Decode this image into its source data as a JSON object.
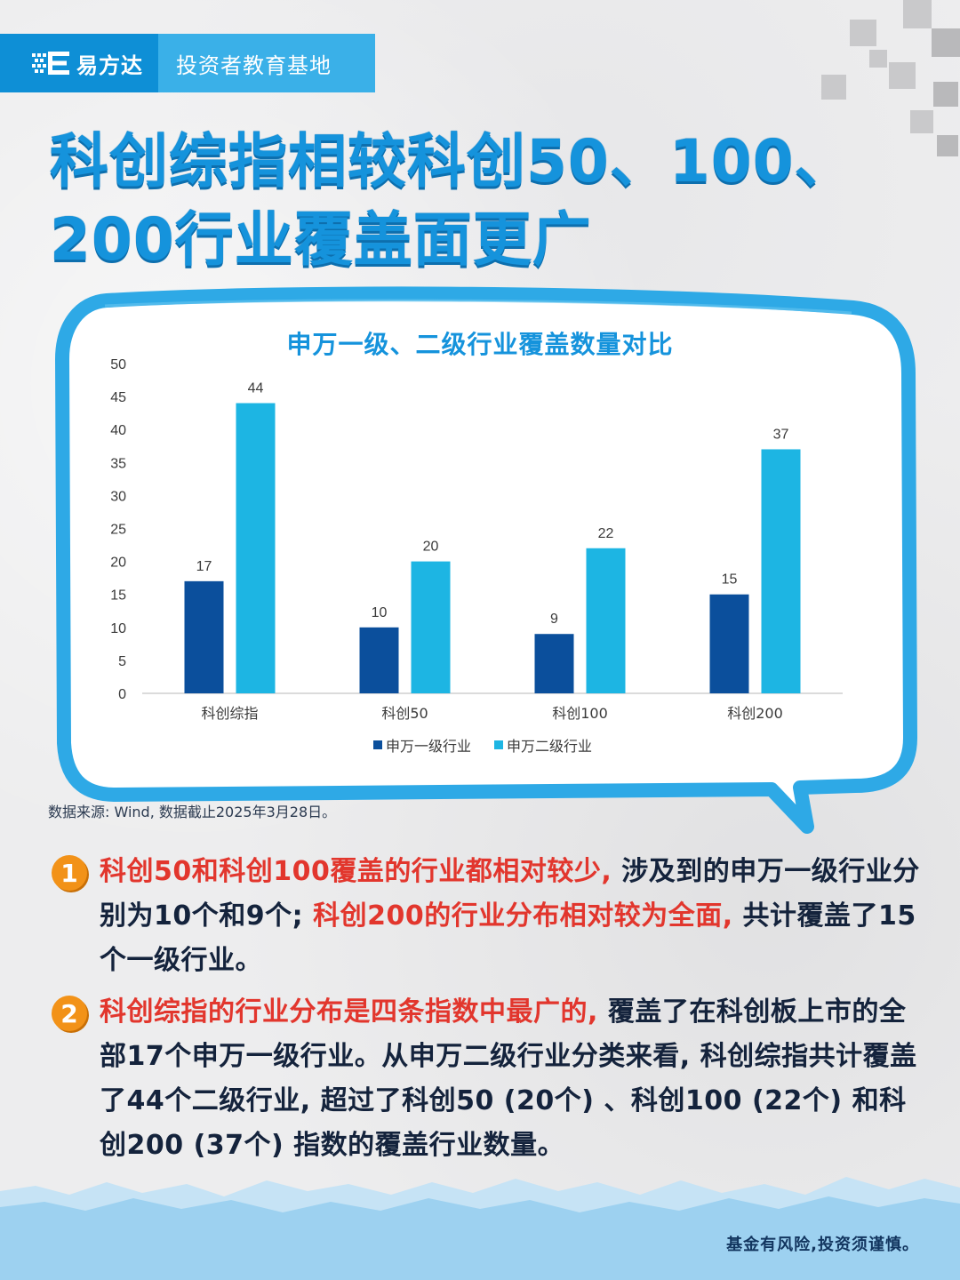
{
  "brand": {
    "name": "易方达",
    "subtitle": "投资者教育基地"
  },
  "title": {
    "line1": "科创综指相较科创50、100、",
    "line2": "200行业覆盖面更广"
  },
  "chart_data": {
    "type": "bar",
    "title": "申万一级、二级行业覆盖数量对比",
    "categories": [
      "科创综指",
      "科创50",
      "科创100",
      "科创200"
    ],
    "series": [
      {
        "name": "申万一级行业",
        "values": [
          17,
          10,
          9,
          15
        ],
        "color": "#0b4f9c"
      },
      {
        "name": "申万二级行业",
        "values": [
          44,
          20,
          22,
          37
        ],
        "color": "#1db5e3"
      }
    ],
    "ylim": [
      0,
      50
    ],
    "yticks": [
      0,
      5,
      10,
      15,
      20,
      25,
      30,
      35,
      40,
      45,
      50
    ],
    "grid": false,
    "legend": "bottom"
  },
  "source": "数据来源: Wind, 数据截止2025年3月28日。",
  "points": [
    {
      "num": "1",
      "parts": [
        {
          "text": "科创50和科创100覆盖的行业都相对较少,",
          "hl": true
        },
        {
          "text": " 涉及到的申万一级行业分别为10个和9个; ",
          "hl": false
        },
        {
          "text": "科创200的行业分布相对较为全面,",
          "hl": true
        },
        {
          "text": " 共计覆盖了15个一级行业。",
          "hl": false
        }
      ]
    },
    {
      "num": "2",
      "parts": [
        {
          "text": "科创综指的行业分布是四条指数中最广的,",
          "hl": true
        },
        {
          "text": " 覆盖了在科创板上市的全部17个申万一级行业。从申万二级行业分类来看, 科创综指共计覆盖了44个二级行业, 超过了科创50 (20个) 、科创100 (22个) 和科创200 (37个) 指数的覆盖行业数量。",
          "hl": false
        }
      ]
    }
  ],
  "footer": {
    "risk": "基金有风险,投资须谨慎。"
  },
  "colors": {
    "accent": "#1593dc",
    "highlight": "#e2362d",
    "badge": "#f29218"
  }
}
